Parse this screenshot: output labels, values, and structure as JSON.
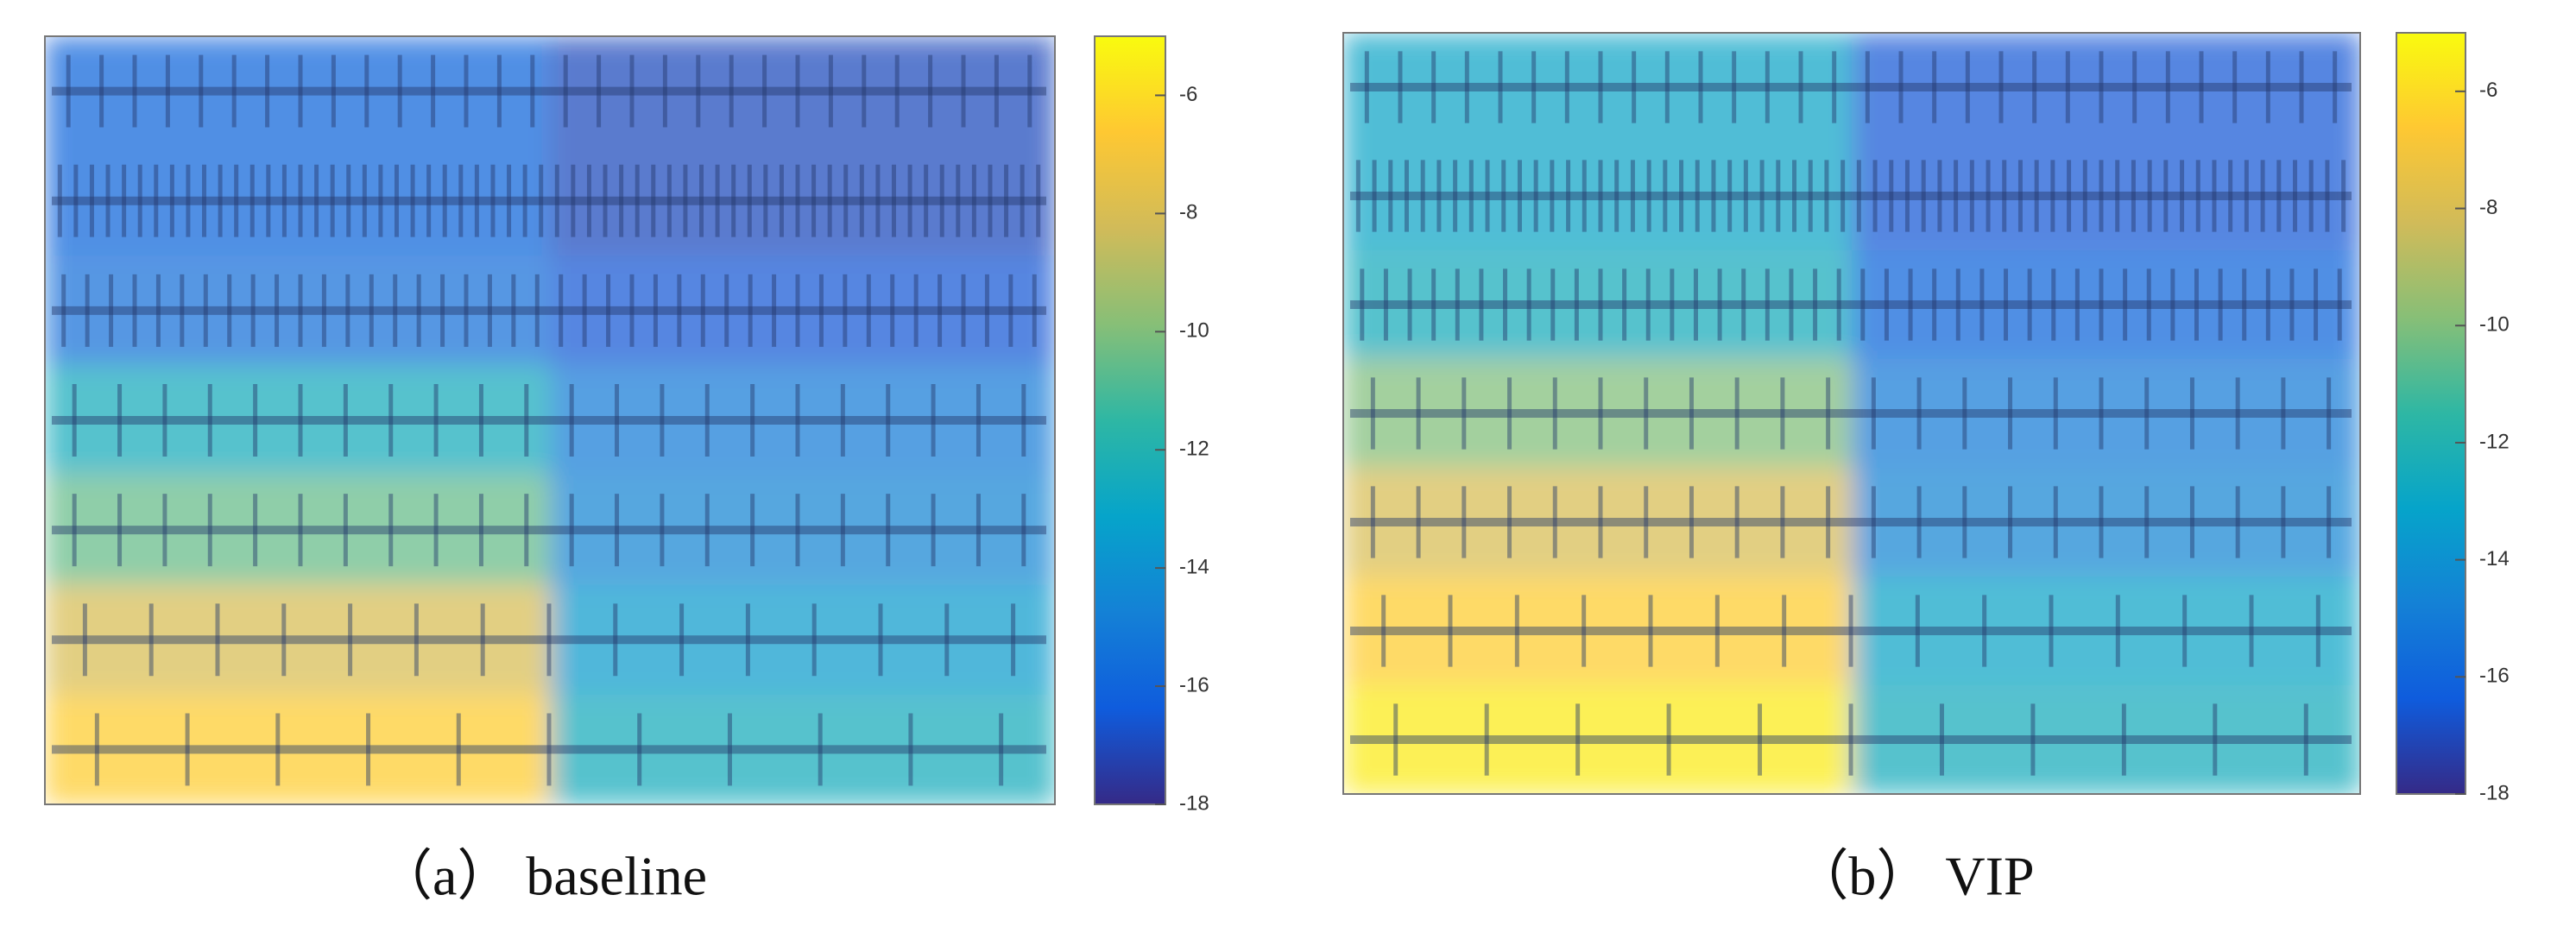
{
  "chart_data": [
    {
      "type": "heatmap",
      "caption": "（a） baseline",
      "values": [
        [
          -16,
          -17
        ],
        [
          -16,
          -17
        ],
        [
          -15.5,
          -16.5
        ],
        [
          -12.5,
          -15
        ],
        [
          -10.5,
          -14.5
        ],
        [
          -8,
          -13.5
        ],
        [
          -6.5,
          -12.5
        ]
      ],
      "zlim": [
        -18,
        -5
      ],
      "zticks": [
        -6,
        -8,
        -10,
        -12,
        -14,
        -16,
        -18
      ],
      "colormap": [
        "#352a87",
        "#0f5cdd",
        "#1481d6",
        "#06a4ca",
        "#2eb7a4",
        "#87bf77",
        "#d1bb59",
        "#fec832",
        "#f9fb0e"
      ]
    },
    {
      "type": "heatmap",
      "caption": "（b） VIP",
      "values": [
        [
          -13,
          -16.5
        ],
        [
          -13,
          -16.5
        ],
        [
          -12.5,
          -16
        ],
        [
          -10,
          -15
        ],
        [
          -8,
          -14.5
        ],
        [
          -6.5,
          -13
        ],
        [
          -5.5,
          -12.5
        ]
      ],
      "zlim": [
        -18,
        -5
      ],
      "zticks": [
        -6,
        -8,
        -10,
        -12,
        -14,
        -16,
        -18
      ],
      "colormap": [
        "#352a87",
        "#0f5cdd",
        "#1481d6",
        "#06a4ca",
        "#2eb7a4",
        "#87bf77",
        "#d1bb59",
        "#fec832",
        "#f9fb0e"
      ]
    }
  ]
}
